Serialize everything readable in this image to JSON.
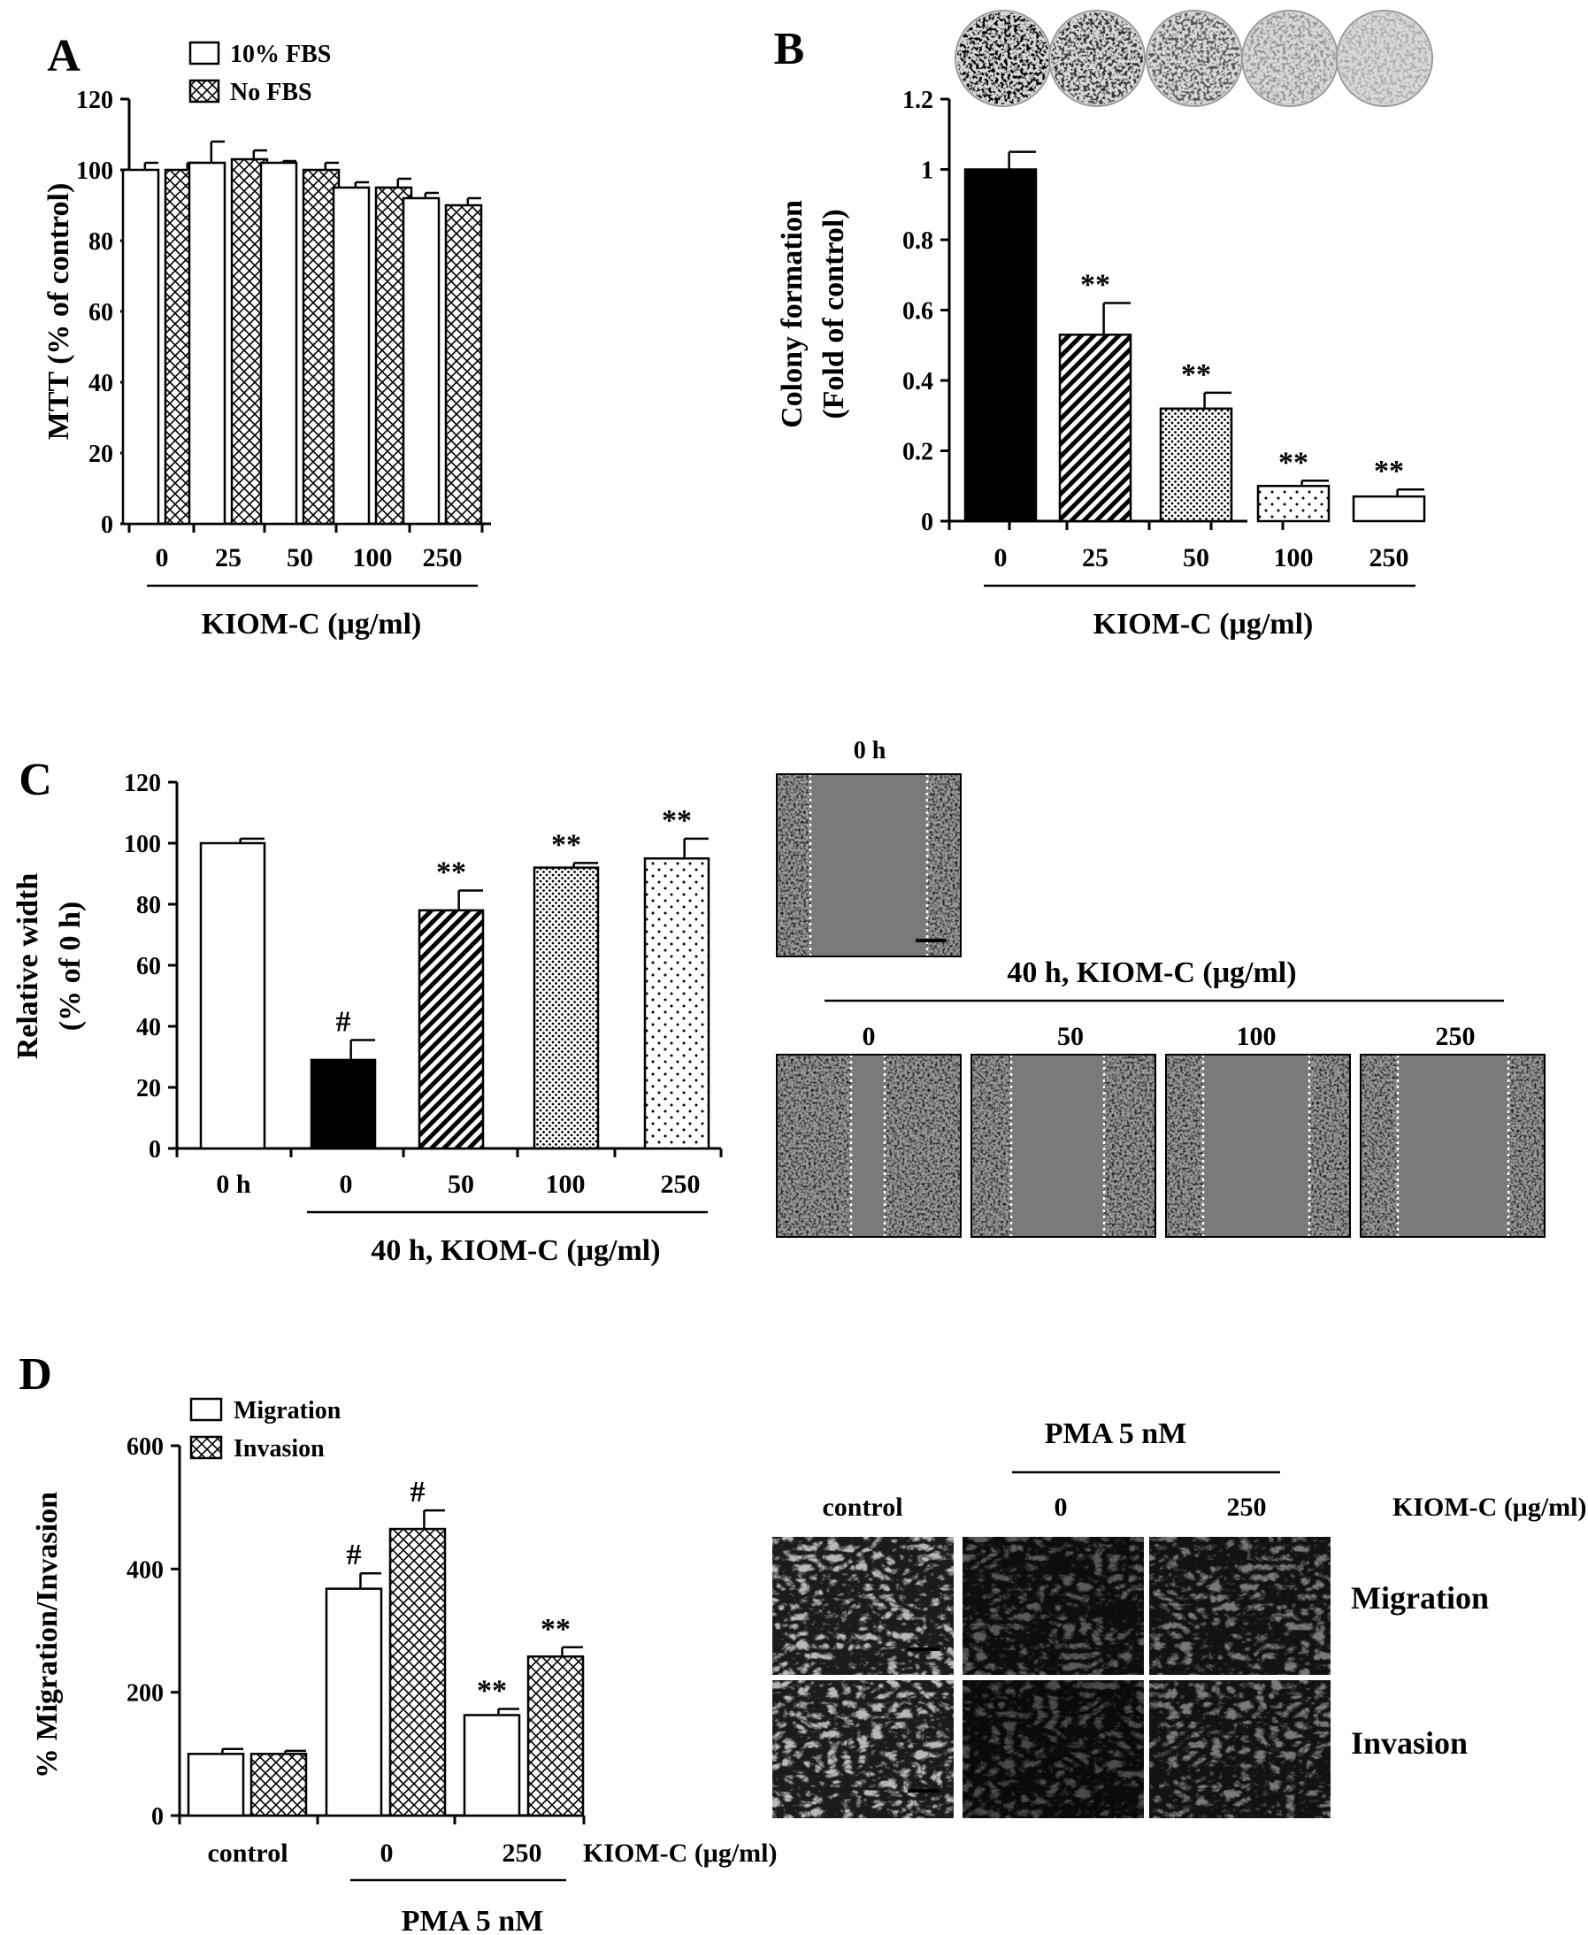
{
  "chart_data": [
    {
      "panel": "A",
      "type": "bar",
      "categories": [
        "0",
        "25",
        "50",
        "100",
        "250"
      ],
      "xlabel": "KIOM-C (μg/ml)",
      "ylabel": "MTT (% of control)",
      "ylim": [
        0,
        120
      ],
      "yticks": [
        "0",
        "20",
        "40",
        "60",
        "80",
        "100",
        "120"
      ],
      "legend_position": "top-left",
      "series": [
        {
          "name": "10% FBS",
          "pattern": "open",
          "values": [
            100,
            102,
            102,
            95,
            92
          ],
          "errors": [
            2,
            6,
            0.5,
            1.5,
            1.5
          ],
          "stars": [
            "",
            "",
            "",
            "",
            ""
          ]
        },
        {
          "name": "No FBS",
          "pattern": "crosshatch",
          "values": [
            100,
            103,
            100,
            95,
            90
          ],
          "errors": [
            2,
            2.5,
            2,
            2.5,
            2
          ],
          "stars": [
            "",
            "",
            "",
            "",
            ""
          ]
        }
      ]
    },
    {
      "panel": "B",
      "type": "bar",
      "categories": [
        "0",
        "25",
        "50",
        "100",
        "250"
      ],
      "xlabel": "KIOM-C (μg/ml)",
      "ylabel_lines": [
        "Colony formation",
        "(Fold of control)"
      ],
      "ylim": [
        0,
        1.2
      ],
      "yticks": [
        "0",
        "0.2",
        "0.4",
        "0.6",
        "0.8",
        "1",
        "1.2"
      ],
      "values": [
        1.0,
        0.53,
        0.32,
        0.1,
        0.07
      ],
      "errors": [
        0.05,
        0.09,
        0.045,
        0.015,
        0.02
      ],
      "patterns": [
        "solid",
        "diagonal",
        "dense-dots",
        "sparse-dots",
        "open"
      ],
      "stars": [
        "",
        "**",
        "**",
        "**",
        "**"
      ],
      "image_count": 5
    },
    {
      "panel": "C",
      "type": "bar",
      "categories": [
        "0 h",
        "0",
        "50",
        "100",
        "250"
      ],
      "xlabel": "40 h, KIOM-C (μg/ml)",
      "ylabel_lines": [
        "Relative width",
        "(% of 0 h)"
      ],
      "ylim": [
        0,
        120
      ],
      "yticks": [
        "0",
        "20",
        "40",
        "60",
        "80",
        "100",
        "120"
      ],
      "values": [
        100,
        29,
        78,
        92,
        95
      ],
      "errors": [
        1.5,
        6.5,
        6.5,
        1.5,
        6.5
      ],
      "patterns": [
        "open",
        "solid",
        "diagonal",
        "dense-dots",
        "sparse-dots"
      ],
      "stars": [
        "",
        "#",
        "**",
        "**",
        "**"
      ],
      "images": {
        "top_label": "0 h",
        "header": "40 h, KIOM-C (μg/ml)",
        "labels": [
          "0",
          "50",
          "100",
          "250"
        ]
      }
    },
    {
      "panel": "D",
      "type": "bar",
      "categories": [
        "control",
        "0",
        "250"
      ],
      "category_suffix": "KIOM-C (μg/ml)",
      "xlabel": "PMA 5 nM",
      "ylabel": "% Migration/Invasion",
      "ylim": [
        0,
        600
      ],
      "yticks": [
        "0",
        "200",
        "400",
        "600"
      ],
      "legend_position": "top-left",
      "series": [
        {
          "name": "Migration",
          "pattern": "open",
          "values": [
            100,
            368,
            163
          ],
          "errors": [
            8,
            25,
            10
          ],
          "stars": [
            "",
            "#",
            "**"
          ]
        },
        {
          "name": "Invasion",
          "pattern": "crosshatch",
          "values": [
            100,
            465,
            258
          ],
          "errors": [
            5,
            30,
            15
          ],
          "stars": [
            "",
            "#",
            "**"
          ]
        }
      ],
      "images": {
        "header": "PMA 5 nM",
        "columns": [
          "control",
          "0",
          "250"
        ],
        "suffix": "KIOM-C (μg/ml)",
        "rows": [
          "Migration",
          "Invasion"
        ]
      }
    }
  ],
  "panel_labels": [
    "A",
    "B",
    "C",
    "D"
  ]
}
